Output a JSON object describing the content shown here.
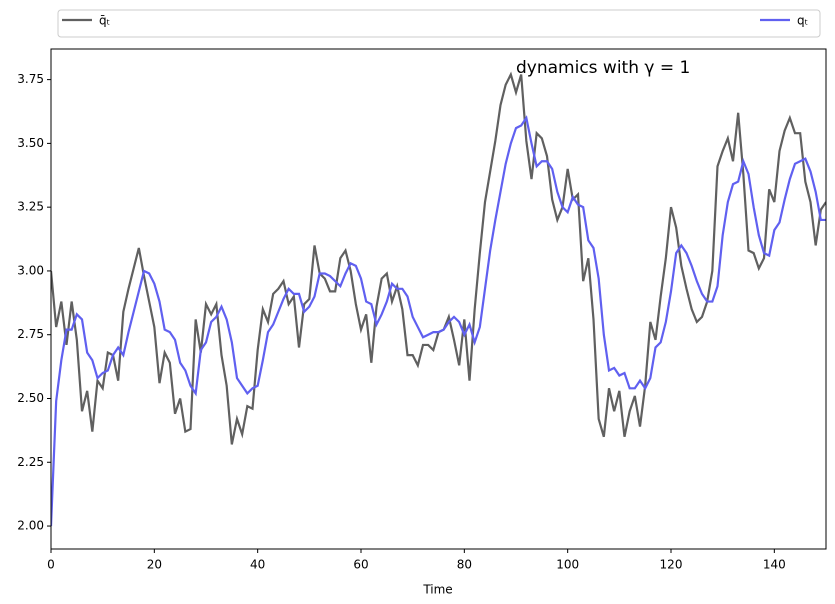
{
  "chart_data": {
    "type": "line",
    "annotation": "dynamics with γ = 1",
    "xlabel": "Time",
    "legend": "above",
    "x": [
      0,
      1,
      2,
      3,
      4,
      5,
      6,
      7,
      8,
      9,
      10,
      11,
      12,
      13,
      14,
      15,
      16,
      17,
      18,
      19,
      20,
      21,
      22,
      23,
      24,
      25,
      26,
      27,
      28,
      29,
      30,
      31,
      32,
      33,
      34,
      35,
      36,
      37,
      38,
      39,
      40,
      41,
      42,
      43,
      44,
      45,
      46,
      47,
      48,
      49,
      50,
      51,
      52,
      53,
      54,
      55,
      56,
      57,
      58,
      59,
      60,
      61,
      62,
      63,
      64,
      65,
      66,
      67,
      68,
      69,
      70,
      71,
      72,
      73,
      74,
      75,
      76,
      77,
      78,
      79,
      80,
      81,
      82,
      83,
      84,
      85,
      86,
      87,
      88,
      89,
      90,
      91,
      92,
      93,
      94,
      95,
      96,
      97,
      98,
      99,
      100,
      101,
      102,
      103,
      104,
      105,
      106,
      107,
      108,
      109,
      110,
      111,
      112,
      113,
      114,
      115,
      116,
      117,
      118,
      119,
      120,
      121,
      122,
      123,
      124,
      125,
      126,
      127,
      128,
      129,
      130,
      131,
      132,
      133,
      134,
      135,
      136,
      137,
      138,
      139,
      140,
      141,
      142,
      143,
      144,
      145,
      146,
      147,
      148,
      149,
      150
    ],
    "series": [
      {
        "name": "q̄ₜ",
        "color": "#606060",
        "values": [
          3.0,
          2.78,
          2.88,
          2.71,
          2.88,
          2.73,
          2.45,
          2.53,
          2.37,
          2.57,
          2.54,
          2.68,
          2.67,
          2.57,
          2.84,
          2.93,
          3.01,
          3.09,
          2.98,
          2.88,
          2.78,
          2.56,
          2.68,
          2.64,
          2.44,
          2.5,
          2.37,
          2.38,
          2.81,
          2.68,
          2.87,
          2.83,
          2.87,
          2.67,
          2.55,
          2.32,
          2.42,
          2.36,
          2.47,
          2.46,
          2.69,
          2.85,
          2.8,
          2.91,
          2.93,
          2.96,
          2.87,
          2.9,
          2.7,
          2.87,
          2.89,
          3.1,
          2.99,
          2.97,
          2.92,
          2.92,
          3.05,
          3.08,
          3.0,
          2.87,
          2.77,
          2.83,
          2.64,
          2.86,
          2.97,
          2.99,
          2.88,
          2.94,
          2.85,
          2.67,
          2.67,
          2.63,
          2.71,
          2.71,
          2.69,
          2.76,
          2.77,
          2.82,
          2.73,
          2.63,
          2.81,
          2.57,
          2.85,
          3.07,
          3.27,
          3.39,
          3.51,
          3.65,
          3.73,
          3.77,
          3.7,
          3.77,
          3.51,
          3.36,
          3.54,
          3.52,
          3.45,
          3.28,
          3.2,
          3.25,
          3.4,
          3.28,
          3.3,
          2.96,
          3.05,
          2.81,
          2.42,
          2.35,
          2.54,
          2.45,
          2.53,
          2.35,
          2.45,
          2.51,
          2.39,
          2.55,
          2.8,
          2.73,
          2.9,
          3.05,
          3.25,
          3.17,
          3.02,
          2.93,
          2.85,
          2.8,
          2.82,
          2.88,
          3.0,
          3.41,
          3.47,
          3.52,
          3.43,
          3.62,
          3.38,
          3.08,
          3.07,
          3.01,
          3.05,
          3.32,
          3.27,
          3.47,
          3.55,
          3.6,
          3.54,
          3.54,
          3.35,
          3.27,
          3.1,
          3.24,
          3.27
        ]
      },
      {
        "name": "qₜ",
        "color": "#6060f0",
        "values": [
          2.0,
          2.49,
          2.65,
          2.77,
          2.77,
          2.83,
          2.81,
          2.68,
          2.65,
          2.58,
          2.6,
          2.61,
          2.67,
          2.7,
          2.67,
          2.76,
          2.84,
          2.92,
          3.0,
          2.99,
          2.95,
          2.88,
          2.77,
          2.76,
          2.73,
          2.64,
          2.61,
          2.55,
          2.52,
          2.69,
          2.72,
          2.8,
          2.82,
          2.86,
          2.81,
          2.72,
          2.58,
          2.55,
          2.52,
          2.54,
          2.55,
          2.65,
          2.76,
          2.79,
          2.84,
          2.89,
          2.93,
          2.91,
          2.91,
          2.84,
          2.86,
          2.9,
          2.99,
          2.99,
          2.98,
          2.96,
          2.94,
          2.99,
          3.03,
          3.02,
          2.97,
          2.88,
          2.87,
          2.79,
          2.83,
          2.88,
          2.95,
          2.93,
          2.93,
          2.9,
          2.82,
          2.78,
          2.74,
          2.75,
          2.76,
          2.76,
          2.77,
          2.8,
          2.82,
          2.8,
          2.75,
          2.79,
          2.72,
          2.78,
          2.93,
          3.08,
          3.2,
          3.31,
          3.42,
          3.5,
          3.56,
          3.57,
          3.6,
          3.5,
          3.41,
          3.43,
          3.43,
          3.4,
          3.31,
          3.25,
          3.23,
          3.29,
          3.26,
          3.25,
          3.12,
          3.09,
          2.97,
          2.75,
          2.61,
          2.62,
          2.59,
          2.6,
          2.54,
          2.54,
          2.57,
          2.54,
          2.58,
          2.7,
          2.72,
          2.8,
          2.92,
          3.07,
          3.1,
          3.07,
          3.02,
          2.96,
          2.91,
          2.88,
          2.88,
          2.94,
          3.14,
          3.27,
          3.34,
          3.35,
          3.43,
          3.38,
          3.25,
          3.14,
          3.07,
          3.06,
          3.16,
          3.19,
          3.28,
          3.36,
          3.42,
          3.43,
          3.44,
          3.39,
          3.31,
          3.2,
          3.2
        ]
      }
    ],
    "xlim": [
      0,
      150
    ],
    "xticks": [
      0,
      20,
      40,
      60,
      80,
      100,
      120,
      140
    ],
    "ylim": [
      1.91,
      3.87
    ],
    "yticks": [
      {
        "value": 2.0,
        "label": "2.00"
      },
      {
        "value": 2.25,
        "label": "2.25"
      },
      {
        "value": 2.5,
        "label": "2.50"
      },
      {
        "value": 2.75,
        "label": "2.75"
      },
      {
        "value": 3.0,
        "label": "3.00"
      },
      {
        "value": 3.25,
        "label": "3.25"
      },
      {
        "value": 3.5,
        "label": "3.50"
      },
      {
        "value": 3.75,
        "label": "3.75"
      }
    ]
  }
}
